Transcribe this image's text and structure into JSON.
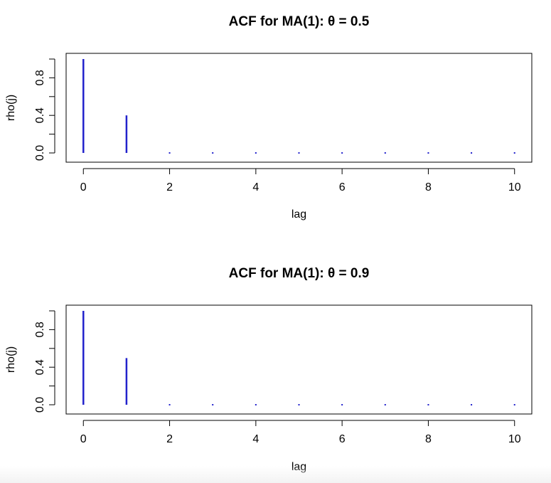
{
  "chart_data": [
    {
      "type": "bar",
      "title": "ACF for MA(1): θ = 0.5",
      "xlabel": "lag",
      "ylabel": "rho(j)",
      "x": [
        0,
        1,
        2,
        3,
        4,
        5,
        6,
        7,
        8,
        9,
        10
      ],
      "values": [
        1.0,
        0.4,
        0,
        0,
        0,
        0,
        0,
        0,
        0,
        0,
        0
      ],
      "xlim": [
        -0.4,
        10.4
      ],
      "ylim": [
        0,
        1.0
      ],
      "xticks": [
        0,
        2,
        4,
        6,
        8,
        10
      ],
      "yticks": [
        0.0,
        0.2,
        0.4,
        0.6,
        0.8,
        1.0
      ],
      "ytick_labels": [
        "0.0",
        "",
        "0.4",
        "",
        "0.8",
        ""
      ],
      "color": "#2222cc",
      "grid": false
    },
    {
      "type": "bar",
      "title": "ACF for MA(1): θ = 0.9",
      "xlabel": "lag",
      "ylabel": "rho(j)",
      "x": [
        0,
        1,
        2,
        3,
        4,
        5,
        6,
        7,
        8,
        9,
        10
      ],
      "values": [
        1.0,
        0.497,
        0,
        0,
        0,
        0,
        0,
        0,
        0,
        0,
        0
      ],
      "xlim": [
        -0.4,
        10.4
      ],
      "ylim": [
        0,
        1.0
      ],
      "xticks": [
        0,
        2,
        4,
        6,
        8,
        10
      ],
      "yticks": [
        0.0,
        0.2,
        0.4,
        0.6,
        0.8,
        1.0
      ],
      "ytick_labels": [
        "0.0",
        "",
        "0.4",
        "",
        "0.8",
        ""
      ],
      "color": "#2222cc",
      "grid": false
    }
  ]
}
